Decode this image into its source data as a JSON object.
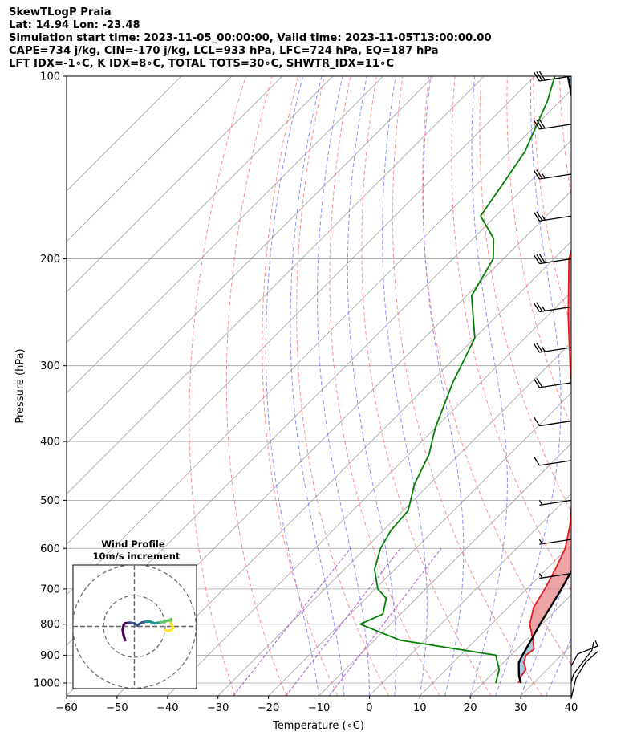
{
  "header": {
    "line1": "SkewTLogP Praia",
    "line2": "Lat: 14.94   Lon: -23.48",
    "line3": "Simulation start time: 2023-11-05_00:00:00, Valid time: 2023-11-05T13:00:00.00",
    "line4": "CAPE=734 j/kg, CIN=-170 j/kg, LCL=933 hPa, LFC=724 hPa, EQ=187 hPa",
    "line5": "LFT IDX=-1∘C, K IDX=8∘C, TOTAL TOTS=30∘C, SHWTR_IDX=11∘C"
  },
  "chart_data": {
    "type": "line",
    "subtype": "skew-t log-p",
    "xlabel": "Temperature (∘C)",
    "ylabel": "Pressure (hPa)",
    "xlim": [
      -60,
      40
    ],
    "ylim": [
      1050,
      100
    ],
    "yscale": "log",
    "xticks": [
      -60,
      -50,
      -40,
      -30,
      -20,
      -10,
      0,
      10,
      20,
      30,
      40
    ],
    "yticks": [
      100,
      200,
      300,
      400,
      500,
      600,
      700,
      800,
      900,
      1000
    ],
    "grid": true,
    "colors": {
      "temperature": "#e41a1c",
      "dewpoint": "#008000",
      "parcel": "#000000",
      "cape_fill": "#e8878a",
      "cin_fill": "#8ab8d8",
      "dry_adiabat": "#ff6a6a",
      "moist_adiabat": "#6a6aff",
      "mixing_ratio": "#9b30d0",
      "isotherm": "#a0a0a0"
    },
    "series": [
      {
        "role": "temperature",
        "points": [
          [
            1000,
            27.0
          ],
          [
            975,
            26.2
          ],
          [
            950,
            25.8
          ],
          [
            925,
            24.0
          ],
          [
            900,
            23.0
          ],
          [
            880,
            23.4
          ],
          [
            850,
            21.4
          ],
          [
            800,
            17.6
          ],
          [
            750,
            15.0
          ],
          [
            700,
            13.6
          ],
          [
            650,
            11.8
          ],
          [
            600,
            9.6
          ],
          [
            550,
            6.0
          ],
          [
            500,
            1.4
          ],
          [
            450,
            -3.9
          ],
          [
            400,
            -10.0
          ],
          [
            350,
            -17.0
          ],
          [
            300,
            -25.6
          ],
          [
            250,
            -35.5
          ],
          [
            200,
            -47.0
          ],
          [
            187,
            -49.5
          ],
          [
            175,
            -52.5
          ],
          [
            165,
            -55.5
          ],
          [
            150,
            -59.5
          ],
          [
            130,
            -66.0
          ],
          [
            115,
            -71.0
          ],
          [
            100,
            -76.0
          ]
        ]
      },
      {
        "role": "dewpoint",
        "points": [
          [
            1000,
            22.5
          ],
          [
            950,
            20.5
          ],
          [
            900,
            17.0
          ],
          [
            850,
            -5.0
          ],
          [
            800,
            -16.0
          ],
          [
            770,
            -13.5
          ],
          [
            725,
            -16.0
          ],
          [
            700,
            -19.5
          ],
          [
            650,
            -24.0
          ],
          [
            600,
            -27.0
          ],
          [
            560,
            -28.5
          ],
          [
            520,
            -29.0
          ],
          [
            470,
            -33.0
          ],
          [
            420,
            -36.0
          ],
          [
            380,
            -40.0
          ],
          [
            320,
            -45.5
          ],
          [
            270,
            -50.0
          ],
          [
            230,
            -59.0
          ],
          [
            200,
            -62.0
          ],
          [
            185,
            -66.0
          ],
          [
            170,
            -73.0
          ],
          [
            150,
            -75.0
          ],
          [
            133,
            -77.0
          ],
          [
            120,
            -80.0
          ],
          [
            110,
            -82.5
          ],
          [
            100,
            -86.0
          ]
        ]
      },
      {
        "role": "parcel",
        "points": [
          [
            1000,
            27.5
          ],
          [
            975,
            25.8
          ],
          [
            950,
            24.4
          ],
          [
            925,
            23.0
          ],
          [
            900,
            22.3
          ],
          [
            850,
            21.0
          ],
          [
            800,
            19.6
          ],
          [
            750,
            18.3
          ],
          [
            700,
            16.9
          ],
          [
            650,
            15.2
          ],
          [
            600,
            13.3
          ],
          [
            550,
            10.9
          ],
          [
            500,
            8.0
          ],
          [
            450,
            4.5
          ],
          [
            400,
            0.2
          ],
          [
            350,
            -5.4
          ],
          [
            300,
            -13.4
          ],
          [
            250,
            -24.6
          ],
          [
            200,
            -38.6
          ],
          [
            175,
            -47.4
          ],
          [
            150,
            -57.6
          ],
          [
            125,
            -69.5
          ],
          [
            100,
            -83.4
          ]
        ]
      }
    ],
    "inset": {
      "title": "Wind Profile",
      "subtitle": "10m/s increment",
      "hodograph": [
        [
          -3,
          -4.5
        ],
        [
          -3.5,
          -3
        ],
        [
          -3.8,
          -1
        ],
        [
          -3.5,
          0.5
        ],
        [
          -3,
          1
        ],
        [
          -1.5,
          1.2
        ],
        [
          0,
          1
        ],
        [
          1,
          0.3
        ],
        [
          1.5,
          0.7
        ],
        [
          2.5,
          1.3
        ],
        [
          3.5,
          1.5
        ],
        [
          5,
          1.6
        ],
        [
          6,
          1.2
        ],
        [
          6.5,
          1
        ],
        [
          7.5,
          1.1
        ],
        [
          8.5,
          1.3
        ],
        [
          9.5,
          1.5
        ],
        [
          10.5,
          1.8
        ],
        [
          11.5,
          2.0
        ],
        [
          12,
          2.4
        ],
        [
          11.8,
          1.2
        ],
        [
          12.2,
          0.3
        ],
        [
          12.6,
          -0.5
        ],
        [
          12,
          -1.2
        ],
        [
          11,
          -1.5
        ],
        [
          10,
          -1.2
        ]
      ],
      "rings": [
        10,
        20
      ]
    },
    "wind_barbs": [
      {
        "p": 100,
        "kt": 30
      },
      {
        "p": 120,
        "kt": 30
      },
      {
        "p": 145,
        "kt": 25
      },
      {
        "p": 170,
        "kt": 25
      },
      {
        "p": 200,
        "kt": 30
      },
      {
        "p": 240,
        "kt": 25
      },
      {
        "p": 280,
        "kt": 25
      },
      {
        "p": 320,
        "kt": 20
      },
      {
        "p": 370,
        "kt": 10
      },
      {
        "p": 430,
        "kt": 10
      },
      {
        "p": 500,
        "kt": 5
      },
      {
        "p": 580,
        "kt": 5
      },
      {
        "p": 660,
        "kt": 5
      }
    ]
  }
}
